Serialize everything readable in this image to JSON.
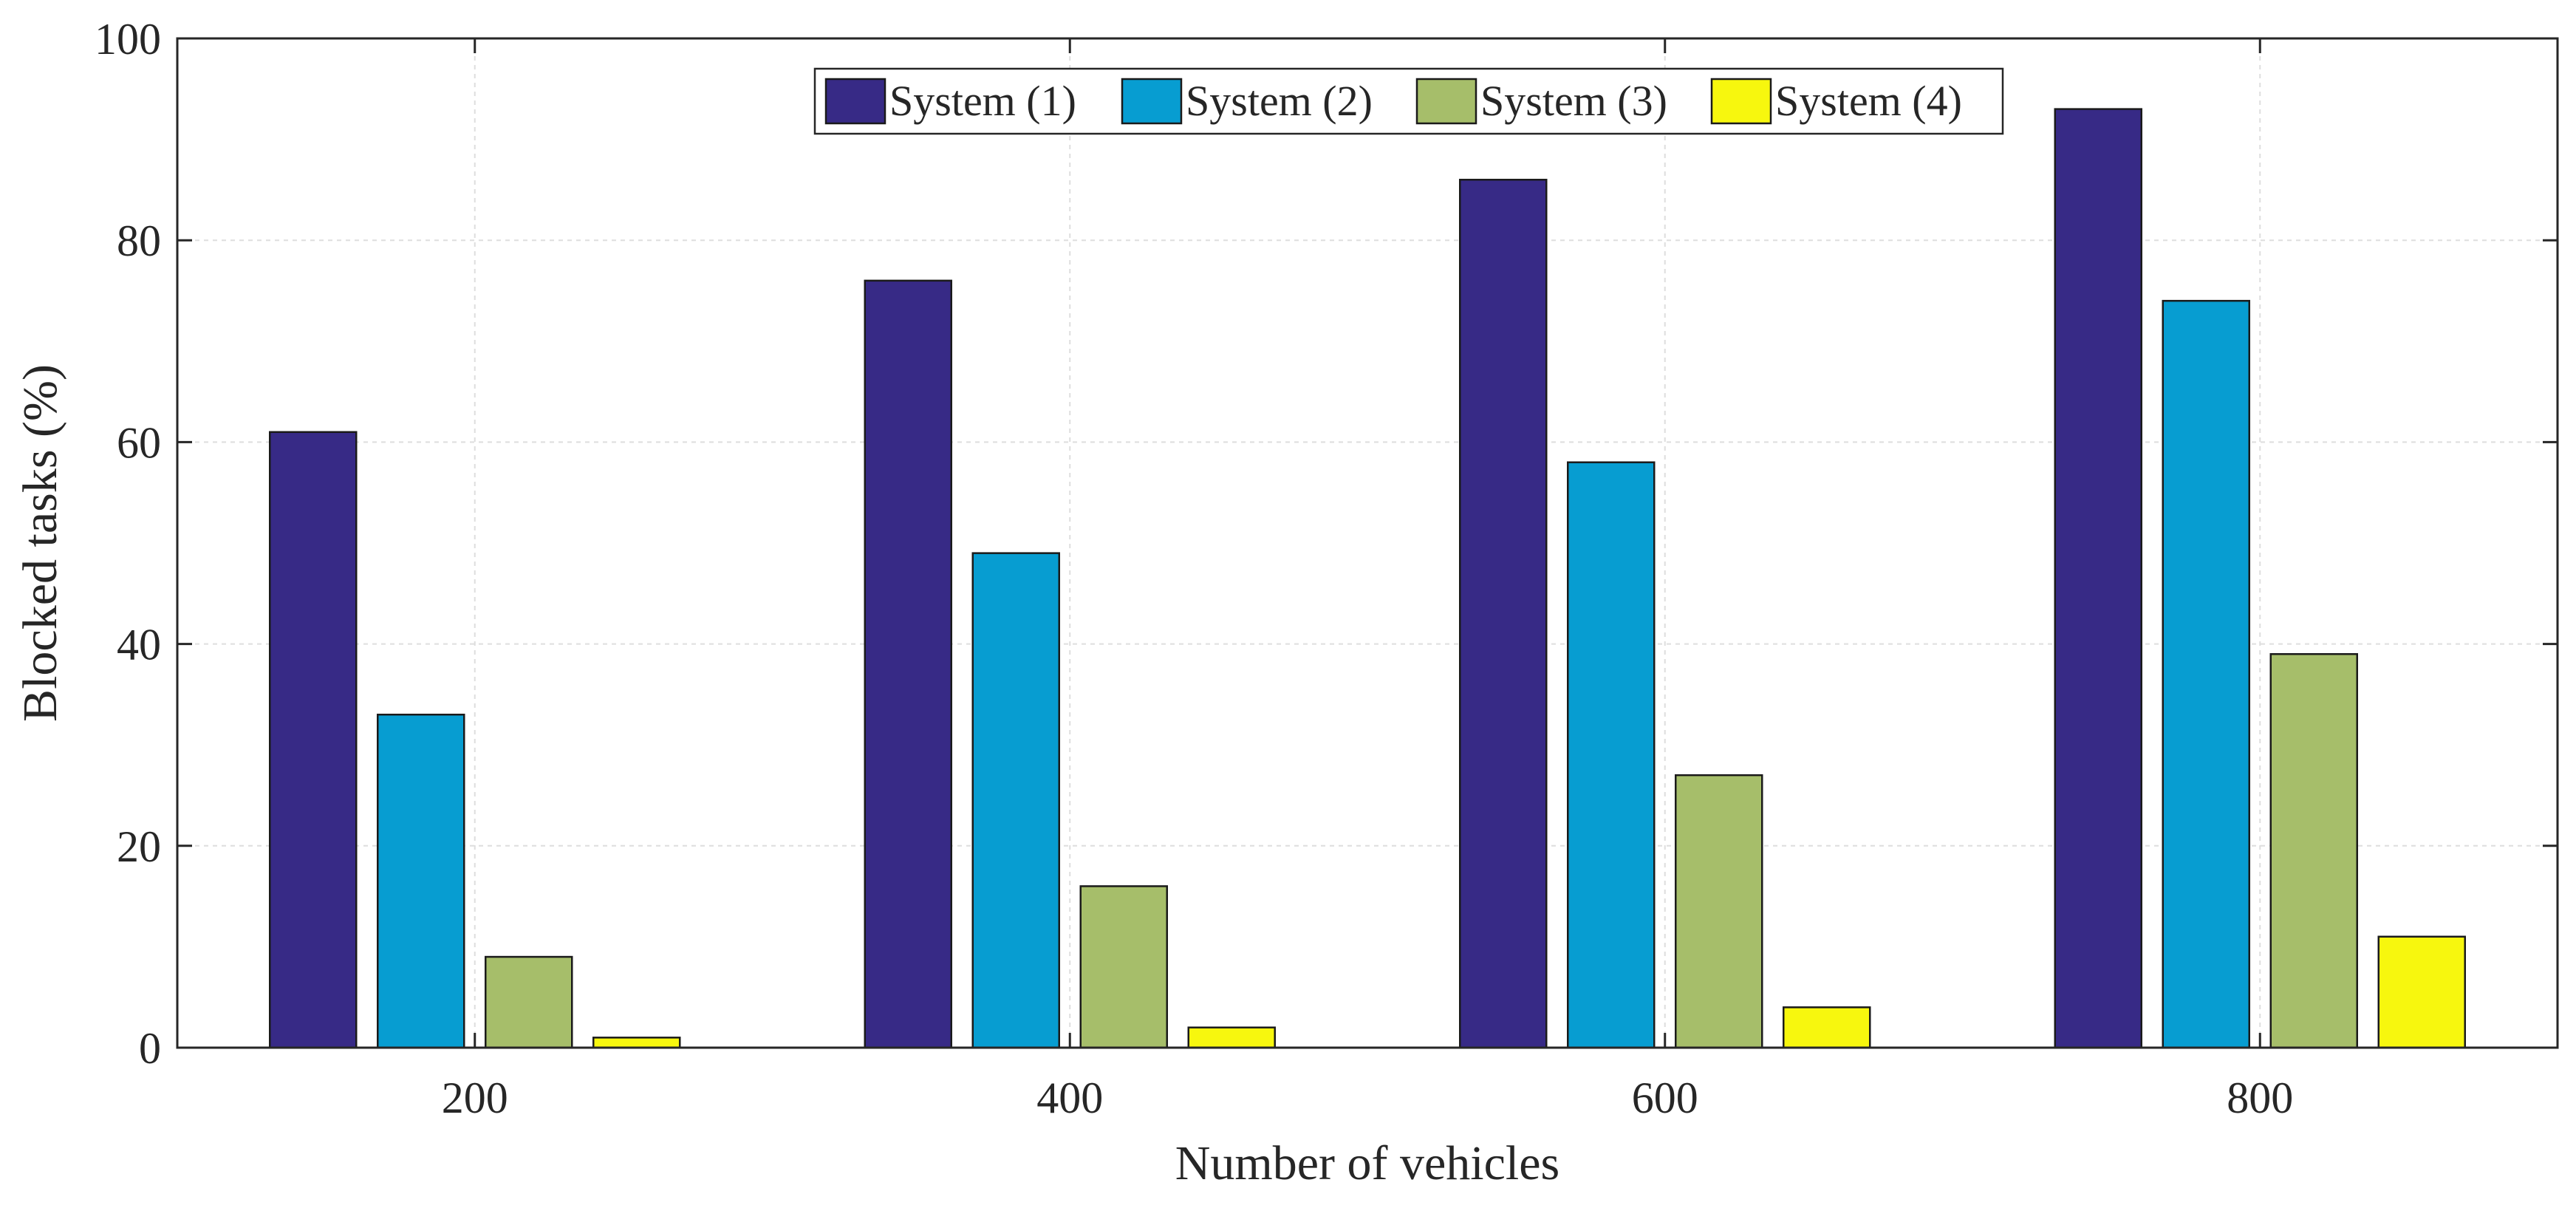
{
  "chart_data": {
    "type": "bar",
    "title": "",
    "xlabel": "Number of vehicles",
    "ylabel": "Blocked tasks (%)",
    "categories": [
      "200",
      "400",
      "600",
      "800"
    ],
    "series": [
      {
        "name": "System (1)",
        "color": "#372a86",
        "values": [
          61,
          76,
          86,
          93
        ]
      },
      {
        "name": "System (2)",
        "color": "#079dd1",
        "values": [
          33,
          49,
          58,
          74
        ]
      },
      {
        "name": "System (3)",
        "color": "#a6be6a",
        "values": [
          9,
          16,
          27,
          39
        ]
      },
      {
        "name": "System (4)",
        "color": "#f7f70e",
        "values": [
          1,
          2,
          4,
          11
        ]
      }
    ],
    "ylim": [
      0,
      100
    ],
    "yticks": [
      0,
      20,
      40,
      60,
      80,
      100
    ],
    "grid": true,
    "legend_position": "top-center"
  }
}
